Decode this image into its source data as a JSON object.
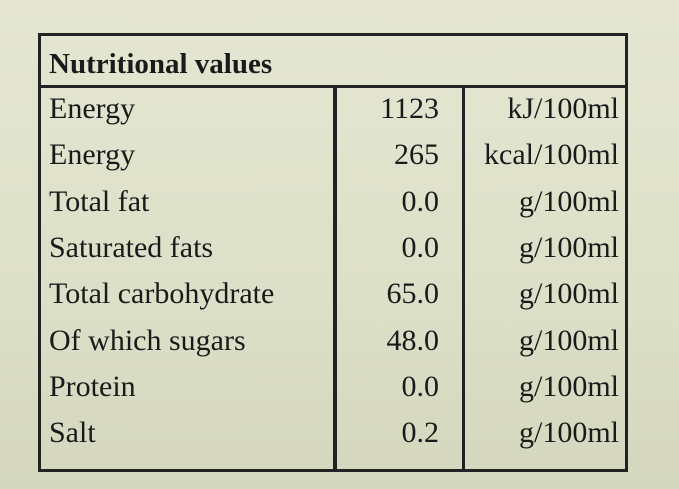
{
  "table": {
    "title": "Nutritional values",
    "rows": [
      [
        "Energy",
        "1123",
        "kJ/100ml"
      ],
      [
        "Energy",
        "265",
        "kcal/100ml"
      ],
      [
        "Total fat",
        "0.0",
        "g/100ml"
      ],
      [
        "Saturated fats",
        "0.0",
        "g/100ml"
      ],
      [
        "Total carbohydrate",
        "65.0",
        "g/100ml"
      ],
      [
        "Of which sugars",
        "48.0",
        "g/100ml"
      ],
      [
        "Protein",
        "0.0",
        "g/100ml"
      ],
      [
        "Salt",
        "0.2",
        "g/100ml"
      ]
    ]
  }
}
